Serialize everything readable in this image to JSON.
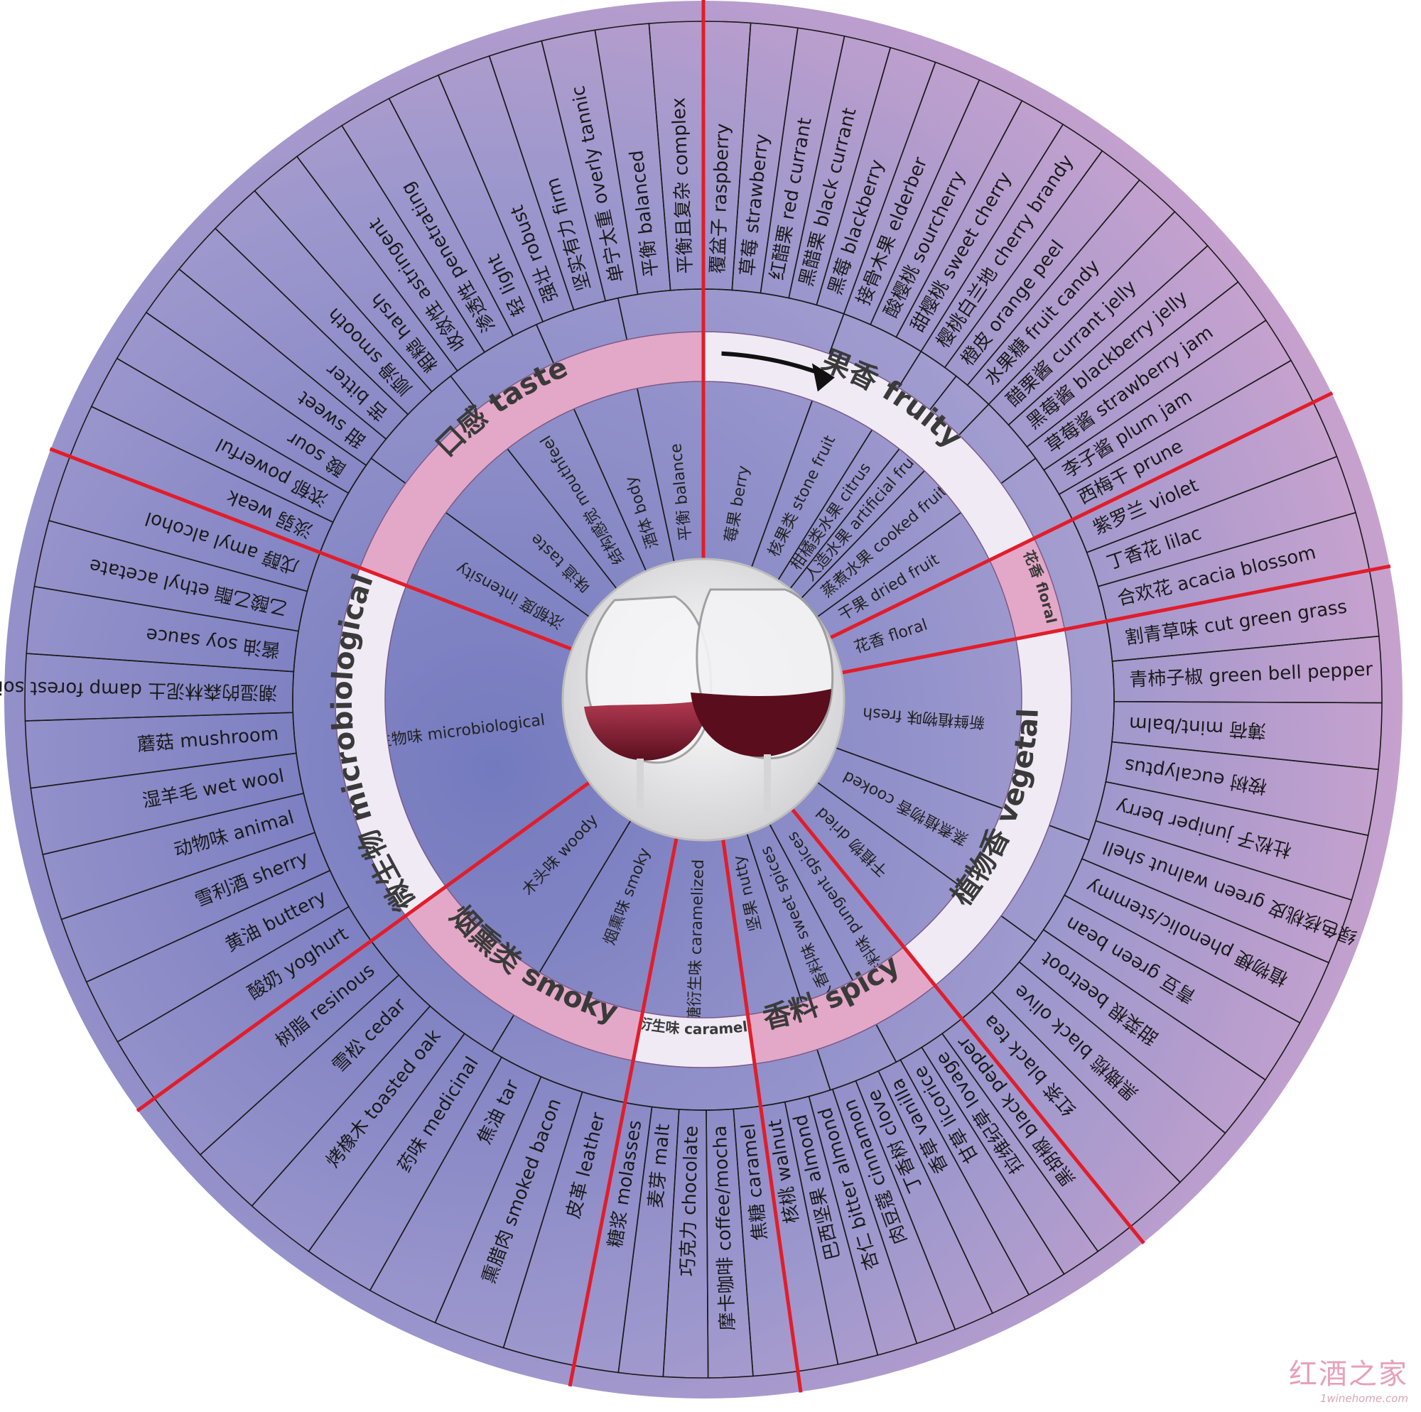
{
  "categories": [
    {
      "id": "fruity",
      "label": "果香 fruity",
      "color": "#b7a7d6"
    },
    {
      "id": "floral",
      "label": "花香 floral",
      "color": "#d9c3df"
    },
    {
      "id": "vegetal",
      "label": "植物香 vegetal",
      "color": "#dba7cc"
    },
    {
      "id": "spicy",
      "label": "香料 spicy",
      "color": "#cf9ec6"
    },
    {
      "id": "caramelized",
      "label": "焦糖衍生味 caramelized",
      "color": "#b99bcb"
    },
    {
      "id": "smoky",
      "label": "烟熏类 smoky",
      "color": "#8f90c8"
    },
    {
      "id": "microbiological",
      "label": "微生物 microbiological",
      "color": "#8186c3"
    },
    {
      "id": "taste",
      "label": "口感 taste",
      "color": "#aaa2d3"
    }
  ],
  "middle_ring": [
    {
      "label": "莓果 berry"
    },
    {
      "label": "核果类 stone fruit"
    },
    {
      "label": "柑橘类水果 citrus"
    },
    {
      "label": "人造水果 artificial fruit"
    },
    {
      "label": "蒸煮水果 cooked fruit"
    },
    {
      "label": "干果 dried fruit"
    },
    {
      "label": "花香 floral"
    },
    {
      "label": "新鲜植物味 fresh"
    },
    {
      "label": "蒸煮植物香 cooked"
    },
    {
      "label": "干植物 dried"
    },
    {
      "label": "辛辣香料味 pungent spices"
    },
    {
      "label": "怡人香料味 sweet spices"
    },
    {
      "label": "坚果 nutty"
    },
    {
      "label": "焦糖衍生味 caramelized"
    },
    {
      "label": "烟熏味 smoky"
    },
    {
      "label": "木头味 woody"
    },
    {
      "label": "微生物味 microbiological"
    },
    {
      "label": "浓郁度 intensity"
    },
    {
      "label": "味道 taste"
    },
    {
      "label": "结构感觉 mouthfeel"
    },
    {
      "label": "酒体 body"
    },
    {
      "label": "平衡 balance"
    }
  ],
  "outer_ring": [
    {
      "label": "覆盆子 raspberry"
    },
    {
      "label": "草莓 strawberry"
    },
    {
      "label": "红醋栗 red currant"
    },
    {
      "label": "黑醋栗 black currant"
    },
    {
      "label": "黑莓 blackberry"
    },
    {
      "label": "接骨木果 elderber"
    },
    {
      "label": "酸樱桃 sourcherry"
    },
    {
      "label": "甜樱桃 sweet cherry"
    },
    {
      "label": "樱桃白兰地 cherry brandy"
    },
    {
      "label": "橙皮 orange peel"
    },
    {
      "label": "水果糖 fruit candy"
    },
    {
      "label": "醋栗酱 currant jelly"
    },
    {
      "label": "黑莓酱 blackberry jelly"
    },
    {
      "label": "草莓酱 strawberry jam"
    },
    {
      "label": "李子酱 plum jam"
    },
    {
      "label": "西梅干 prune"
    },
    {
      "label": "紫罗兰 violet"
    },
    {
      "label": "丁香花 lilac"
    },
    {
      "label": "合欢花 acacia blossom"
    },
    {
      "label": "割青草味 cut green grass"
    },
    {
      "label": "青柿子椒 green bell pepper"
    },
    {
      "label": "薄荷 mint/balm"
    },
    {
      "label": "桉树 eucalyptus"
    },
    {
      "label": "杜松子 juniper berry"
    },
    {
      "label": "绿色核桃皮 green walnut shell"
    },
    {
      "label": "植物梗 phenolic/stemmy"
    },
    {
      "label": "青豆 green bean"
    },
    {
      "label": "甜菜根 beetroot"
    },
    {
      "label": "黑橄榄 black olive"
    },
    {
      "label": "红茶 black tea"
    },
    {
      "label": "黑胡椒 black pepper"
    },
    {
      "label": "拉维纪草 lovage"
    },
    {
      "label": "甘草 licorice"
    },
    {
      "label": "香草 vanilla"
    },
    {
      "label": "丁香树 clove"
    },
    {
      "label": "肉豆蔻 cinnamon"
    },
    {
      "label": "杏仁 bitter almond"
    },
    {
      "label": "巴西坚果 almond"
    },
    {
      "label": "核桃 walnut"
    },
    {
      "label": "焦糖 caramel"
    },
    {
      "label": "摩卡咖啡 coffee/mocha"
    },
    {
      "label": "巧克力 chocolate"
    },
    {
      "label": "麦芽 malt"
    },
    {
      "label": "糖浆 molasses"
    },
    {
      "label": "皮革 leather"
    },
    {
      "label": "熏腊肉 smoked bacon"
    },
    {
      "label": "焦油 tar"
    },
    {
      "label": "药味 medicinal"
    },
    {
      "label": "烤橡木 toasted oak"
    },
    {
      "label": "雪松 cedar"
    },
    {
      "label": "树脂 resinous"
    },
    {
      "label": "酸奶 yoghurt"
    },
    {
      "label": "黄油 buttery"
    },
    {
      "label": "雪利酒 sherry"
    },
    {
      "label": "动物味 animal"
    },
    {
      "label": "湿羊毛 wet wool"
    },
    {
      "label": "蘑菇 mushroom"
    },
    {
      "label": "潮湿的森林泥土 damp forest soil"
    },
    {
      "label": "酱油 soy sauce"
    },
    {
      "label": "乙酸乙酯 ethyl acetate"
    },
    {
      "label": "戊醇 amyl alcohol"
    },
    {
      "label": "淡弱 weak"
    },
    {
      "label": "浓郁 powerful"
    },
    {
      "label": "酸 sour"
    },
    {
      "label": "甜 sweet"
    },
    {
      "label": "苦 bitter"
    },
    {
      "label": "顺滑 smooth"
    },
    {
      "label": "粗糙 harsh"
    },
    {
      "label": "收敛性 astringent"
    },
    {
      "label": "渗透性 penetrating"
    },
    {
      "label": "轻 light"
    },
    {
      "label": "强壮 robust"
    },
    {
      "label": "坚实有力 firm"
    },
    {
      "label": "单宁太重 overly tannic"
    },
    {
      "label": "平衡 balanced"
    },
    {
      "label": "平衡且复杂 complex"
    }
  ],
  "watermark": {
    "cn": "红酒之家",
    "url": "1winehome.com"
  }
}
